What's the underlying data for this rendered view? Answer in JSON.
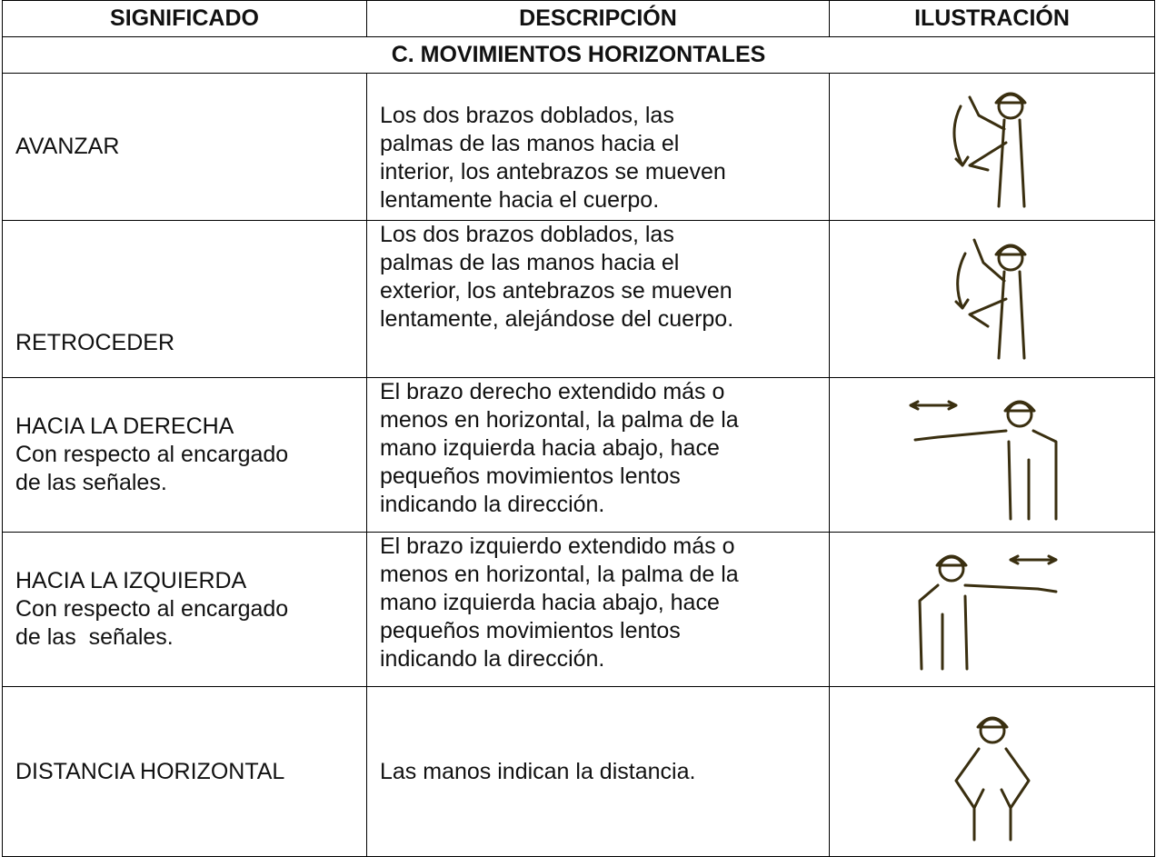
{
  "header": [
    "SIGNIFICADO",
    "DESCRIPCIÓN",
    "ILUSTRACIÓN"
  ],
  "section": "C. MOVIMIENTOS HORIZONTALES",
  "rows": [
    {
      "meaning": [
        "AVANZAR"
      ],
      "description": [
        "Los dos brazos doblados, las",
        "palmas de las manos hacia el",
        "interior, los antebrazos se mueven",
        "lentamente hacia el cuerpo."
      ]
    },
    {
      "meaning": [
        "RETROCEDER"
      ],
      "description": [
        "Los dos brazos doblados, las",
        "palmas de las manos hacia el",
        "exterior, los antebrazos se mueven",
        "lentamente, alejándose del cuerpo."
      ]
    },
    {
      "meaning": [
        "HACIA LA DERECHA",
        "Con respecto al encargado",
        "de las señales."
      ],
      "description": [
        "El brazo derecho extendido más o",
        "menos en horizontal, la palma de la",
        "mano izquierda hacia abajo, hace",
        "pequeños movimientos lentos",
        "indicando la dirección."
      ]
    },
    {
      "meaning": [
        "HACIA LA IZQUIERDA",
        "Con respecto al encargado",
        "de las  señales."
      ],
      "description": [
        "El brazo izquierdo extendido más o",
        "menos en horizontal, la palma de la",
        "mano izquierda hacia abajo, hace",
        "pequeños movimientos lentos",
        "indicando la dirección."
      ]
    },
    {
      "meaning": [
        "DISTANCIA HORIZONTAL"
      ],
      "description": [
        "Las manos indican la distancia."
      ]
    }
  ]
}
